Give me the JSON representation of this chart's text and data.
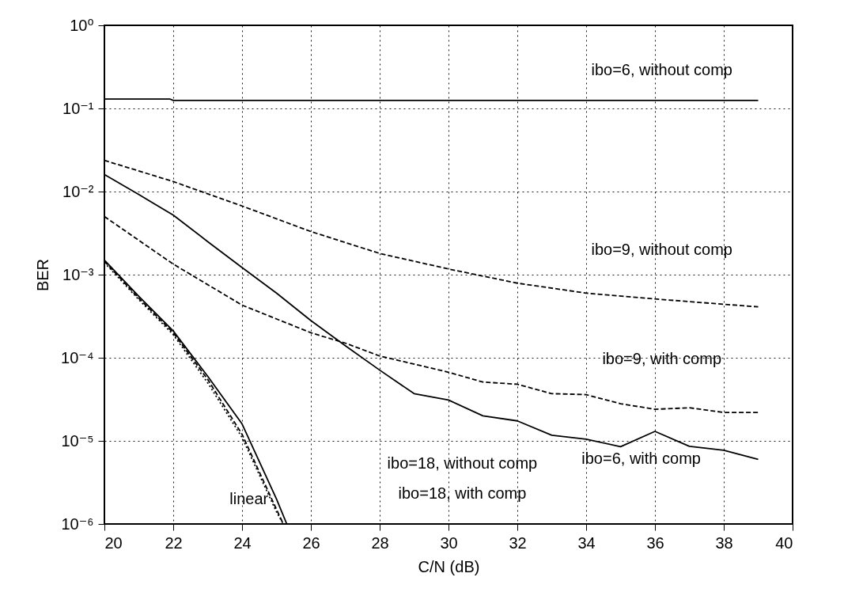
{
  "chart_data": {
    "type": "line",
    "xlabel": "C/N (dB)",
    "ylabel": "BER",
    "log": "y",
    "grid": true,
    "marker": "none",
    "xlim": [
      20,
      40
    ],
    "xticks": [
      20,
      22,
      24,
      26,
      28,
      30,
      32,
      34,
      36,
      38,
      40
    ],
    "ylim": [
      1e-06,
      1
    ],
    "yticks": [
      {
        "value": 1e-06,
        "label": "10⁻⁶"
      },
      {
        "value": 1e-05,
        "label": "10⁻⁵"
      },
      {
        "value": 0.0001,
        "label": "10⁻⁴"
      },
      {
        "value": 0.001,
        "label": "10⁻³"
      },
      {
        "value": 0.01,
        "label": "10⁻²"
      },
      {
        "value": 0.1,
        "label": "10⁻¹"
      },
      {
        "value": 1,
        "label": "10⁰"
      }
    ],
    "series": [
      {
        "color": "#000000",
        "line_style": "solid",
        "x": [
          20,
          21.9,
          22,
          39
        ],
        "values": [
          0.13,
          0.13,
          0.125,
          0.125
        ]
      },
      {
        "color": "#000000",
        "line_style": "dashed",
        "x": [
          20,
          22,
          24,
          26,
          28,
          30,
          32,
          34,
          36,
          38,
          39
        ],
        "values": [
          0.0237,
          0.0132,
          0.0067,
          0.0033,
          0.0018,
          0.00117,
          0.00079,
          0.0006,
          0.00051,
          0.00044,
          0.00041
        ]
      },
      {
        "color": "#000000",
        "line_style": "solid",
        "x": [
          20,
          21,
          22,
          23,
          24,
          25,
          26,
          27,
          28,
          29,
          30,
          31,
          32,
          33,
          34,
          35,
          36,
          37,
          38,
          39
        ],
        "values": [
          0.016,
          0.0092,
          0.0052,
          0.0025,
          0.00122,
          0.0006,
          0.00028,
          0.00014,
          7.1e-05,
          3.7e-05,
          3.1e-05,
          2e-05,
          1.74e-05,
          1.17e-05,
          1.05e-05,
          8.5e-06,
          1.3e-05,
          8.6e-06,
          7.7e-06,
          6e-06
        ]
      },
      {
        "color": "#000000",
        "line_style": "dashed",
        "x": [
          20,
          22,
          24,
          26,
          27,
          28,
          30,
          31,
          32,
          33,
          34,
          35,
          36,
          37,
          38,
          39
        ],
        "values": [
          0.005,
          0.00134,
          0.00043,
          0.0002,
          0.00015,
          0.000105,
          6.7e-05,
          5.1e-05,
          4.8e-05,
          3.7e-05,
          3.6e-05,
          2.8e-05,
          2.4e-05,
          2.5e-05,
          2.2e-05,
          2.2e-05
        ]
      },
      {
        "color": "#000000",
        "line_style": "solid",
        "x": [
          20,
          21,
          22,
          23,
          24,
          25,
          25.3
        ],
        "values": [
          0.0015,
          0.00055,
          0.00021,
          6e-05,
          1.6e-05,
          2e-06,
          1e-06
        ]
      },
      {
        "color": "#000000",
        "line_style": "dashed",
        "x": [
          20,
          21,
          22,
          23,
          24,
          25,
          25.2
        ],
        "values": [
          0.00145,
          0.00052,
          0.0002,
          5.5e-05,
          1.2e-05,
          1.5e-06,
          1e-06
        ]
      },
      {
        "color": "#000000",
        "line_style": "dotted",
        "x": [
          20,
          21,
          22,
          23,
          24,
          25,
          25.2
        ],
        "values": [
          0.0014,
          0.0005,
          0.00019,
          5e-05,
          1.1e-05,
          1.4e-06,
          1e-06
        ]
      }
    ],
    "annotations": [
      "ibo=6, without comp",
      "ibo=9, without comp",
      "ibo=9, with comp",
      "ibo=6, with comp",
      "ibo=18, without comp",
      "ibo=18, with comp",
      "linear"
    ]
  }
}
